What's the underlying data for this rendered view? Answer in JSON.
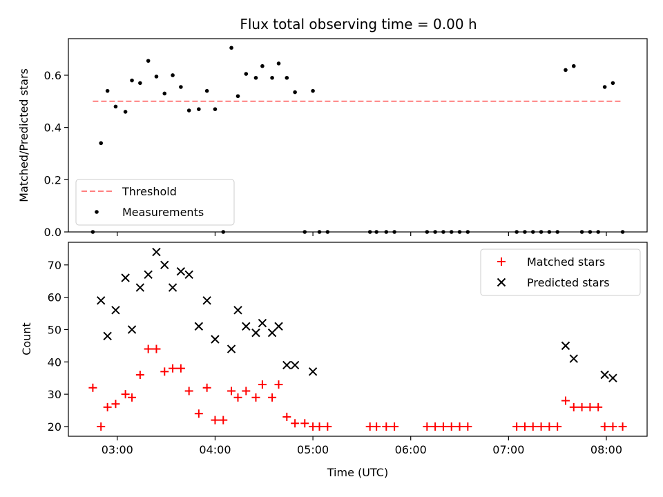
{
  "chart_data": [
    {
      "type": "scatter",
      "title": "Flux total observing time = 0.00 h",
      "xlabel": "",
      "ylabel": "Matched/Predicted stars",
      "xlim": [
        "02:30",
        "08:25"
      ],
      "ylim": [
        0,
        0.74
      ],
      "xticks": [
        "03:00",
        "04:00",
        "05:00",
        "06:00",
        "07:00",
        "08:00"
      ],
      "yticks": [
        0.0,
        0.2,
        0.4,
        0.6
      ],
      "ytick_labels": [
        "0.0",
        "0.2",
        "0.4",
        "0.6"
      ],
      "legend_position": "lower-left",
      "series": [
        {
          "name": "Threshold",
          "kind": "line",
          "style": "dashed",
          "color": "#ff7f7f",
          "x": [
            "02:45",
            "08:10"
          ],
          "y": [
            0.5,
            0.5
          ]
        },
        {
          "name": "Measurements",
          "kind": "points",
          "marker": "dot",
          "color": "#000000",
          "x": [
            "02:45",
            "02:50",
            "02:54",
            "02:59",
            "03:05",
            "03:09",
            "03:14",
            "03:19",
            "03:24",
            "03:29",
            "03:34",
            "03:39",
            "03:44",
            "03:50",
            "03:55",
            "04:00",
            "04:05",
            "04:10",
            "04:14",
            "04:19",
            "04:25",
            "04:29",
            "04:35",
            "04:39",
            "04:44",
            "04:49",
            "04:55",
            "05:00",
            "05:04",
            "05:09",
            "05:35",
            "05:39",
            "05:45",
            "05:50",
            "06:10",
            "06:15",
            "06:20",
            "06:25",
            "06:30",
            "06:35",
            "07:05",
            "07:10",
            "07:15",
            "07:20",
            "07:25",
            "07:30",
            "07:35",
            "07:40",
            "07:45",
            "07:50",
            "07:55",
            "07:59",
            "08:04",
            "08:10"
          ],
          "y": [
            0.0,
            0.34,
            0.54,
            0.48,
            0.46,
            0.58,
            0.57,
            0.655,
            0.595,
            0.53,
            0.6,
            0.555,
            0.465,
            0.47,
            0.54,
            0.47,
            0.0,
            0.705,
            0.52,
            0.605,
            0.59,
            0.635,
            0.59,
            0.645,
            0.59,
            0.535,
            0.0,
            0.54,
            0.0,
            0.0,
            0.0,
            0.0,
            0.0,
            0.0,
            0.0,
            0.0,
            0.0,
            0.0,
            0.0,
            0.0,
            0.0,
            0.0,
            0.0,
            0.0,
            0.0,
            0.0,
            0.62,
            0.635,
            0.0,
            0.0,
            0.0,
            0.555,
            0.57,
            0.0
          ]
        }
      ]
    },
    {
      "type": "scatter",
      "title": "",
      "xlabel": "Time (UTC)",
      "ylabel": "Count",
      "xlim": [
        "02:30",
        "08:25"
      ],
      "ylim": [
        17,
        77
      ],
      "xticks": [
        "03:00",
        "04:00",
        "05:00",
        "06:00",
        "07:00",
        "08:00"
      ],
      "yticks": [
        20,
        30,
        40,
        50,
        60,
        70
      ],
      "legend_position": "upper-right",
      "series": [
        {
          "name": "Matched stars",
          "kind": "points",
          "marker": "plus",
          "color": "#ff0000",
          "x": [
            "02:45",
            "02:50",
            "02:54",
            "02:59",
            "03:05",
            "03:09",
            "03:14",
            "03:19",
            "03:24",
            "03:29",
            "03:34",
            "03:39",
            "03:44",
            "03:50",
            "03:55",
            "04:00",
            "04:05",
            "04:10",
            "04:14",
            "04:19",
            "04:25",
            "04:29",
            "04:35",
            "04:39",
            "04:44",
            "04:49",
            "04:55",
            "05:00",
            "05:04",
            "05:09",
            "05:35",
            "05:39",
            "05:45",
            "05:50",
            "06:10",
            "06:15",
            "06:20",
            "06:25",
            "06:30",
            "06:35",
            "07:05",
            "07:10",
            "07:15",
            "07:20",
            "07:25",
            "07:30",
            "07:35",
            "07:40",
            "07:45",
            "07:50",
            "07:55",
            "07:59",
            "08:04",
            "08:10"
          ],
          "y": [
            32,
            20,
            26,
            27,
            30,
            29,
            36,
            44,
            44,
            37,
            38,
            38,
            31,
            24,
            32,
            22,
            22,
            31,
            29,
            31,
            29,
            33,
            29,
            33,
            23,
            21,
            21,
            20,
            20,
            20,
            20,
            20,
            20,
            20,
            20,
            20,
            20,
            20,
            20,
            20,
            20,
            20,
            20,
            20,
            20,
            20,
            28,
            26,
            26,
            26,
            26,
            20,
            20,
            20
          ]
        },
        {
          "name": "Predicted stars",
          "kind": "points",
          "marker": "x",
          "color": "#000000",
          "x": [
            "02:50",
            "02:54",
            "02:59",
            "03:05",
            "03:09",
            "03:14",
            "03:19",
            "03:24",
            "03:29",
            "03:34",
            "03:39",
            "03:44",
            "03:50",
            "03:55",
            "04:00",
            "04:10",
            "04:14",
            "04:19",
            "04:25",
            "04:29",
            "04:35",
            "04:39",
            "04:44",
            "04:49",
            "05:00",
            "07:35",
            "07:40",
            "07:59",
            "08:04"
          ],
          "y": [
            59,
            48,
            56,
            66,
            50,
            63,
            67,
            74,
            70,
            63,
            68,
            67,
            51,
            59,
            47,
            44,
            56,
            51,
            49,
            52,
            49,
            51,
            39,
            39,
            37,
            45,
            41,
            36,
            35
          ]
        }
      ]
    }
  ]
}
